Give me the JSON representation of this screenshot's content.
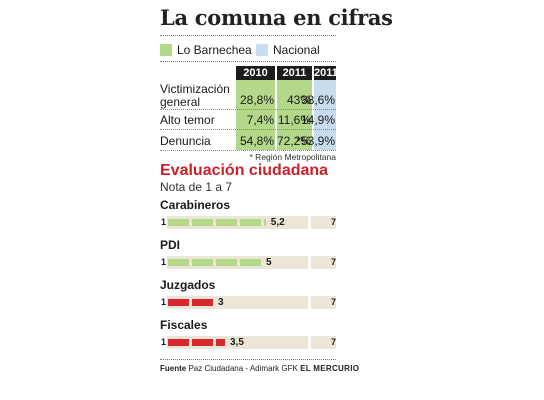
{
  "title": "La comuna en cifras",
  "legend": {
    "lo_barnechea": "Lo Barnechea",
    "nacional": "Nacional"
  },
  "colors": {
    "green": "#b3d88a",
    "blue": "#c9dcee",
    "red": "#d7262d",
    "track": "#ebe6d8",
    "header": "#1c1c1c"
  },
  "chart_data": [
    {
      "type": "table",
      "columns": [
        "2010",
        "2011",
        "2011"
      ],
      "column_groups": [
        "Lo Barnechea",
        "Lo Barnechea",
        "Nacional"
      ],
      "rows": [
        {
          "label": "Victimización general",
          "label_lines": [
            "Victimización",
            "general"
          ],
          "values": [
            "28,8%",
            "43%",
            "38,6%"
          ]
        },
        {
          "label": "Alto temor",
          "label_lines": [
            "Alto temor"
          ],
          "values": [
            "7,4%",
            "11,6%",
            "14,9%"
          ]
        },
        {
          "label": "Denuncia",
          "label_lines": [
            "Denuncia"
          ],
          "values": [
            "54,8%",
            "72,2%",
            "*53,9%"
          ]
        }
      ],
      "footnote": "* Región Metropolitana"
    },
    {
      "type": "bar",
      "title": "Evaluación ciudadana",
      "subtitle": "Nota de 1 a 7",
      "scale_min": 1,
      "scale_max": 7,
      "categories": [
        "Carabineros",
        "PDI",
        "Juzgados",
        "Fiscales"
      ],
      "values": [
        5.2,
        5,
        3,
        3.5
      ],
      "value_labels": [
        "5,2",
        "5",
        "3",
        "3,5"
      ],
      "bar_colors": [
        "#b3d88a",
        "#b3d88a",
        "#d7262d",
        "#d7262d"
      ],
      "min_label": "1",
      "max_label": "7"
    }
  ],
  "source": {
    "label": "Fuente",
    "text": "Paz Ciudadana - Adimark GFK",
    "publisher": "EL MERCURIO"
  }
}
